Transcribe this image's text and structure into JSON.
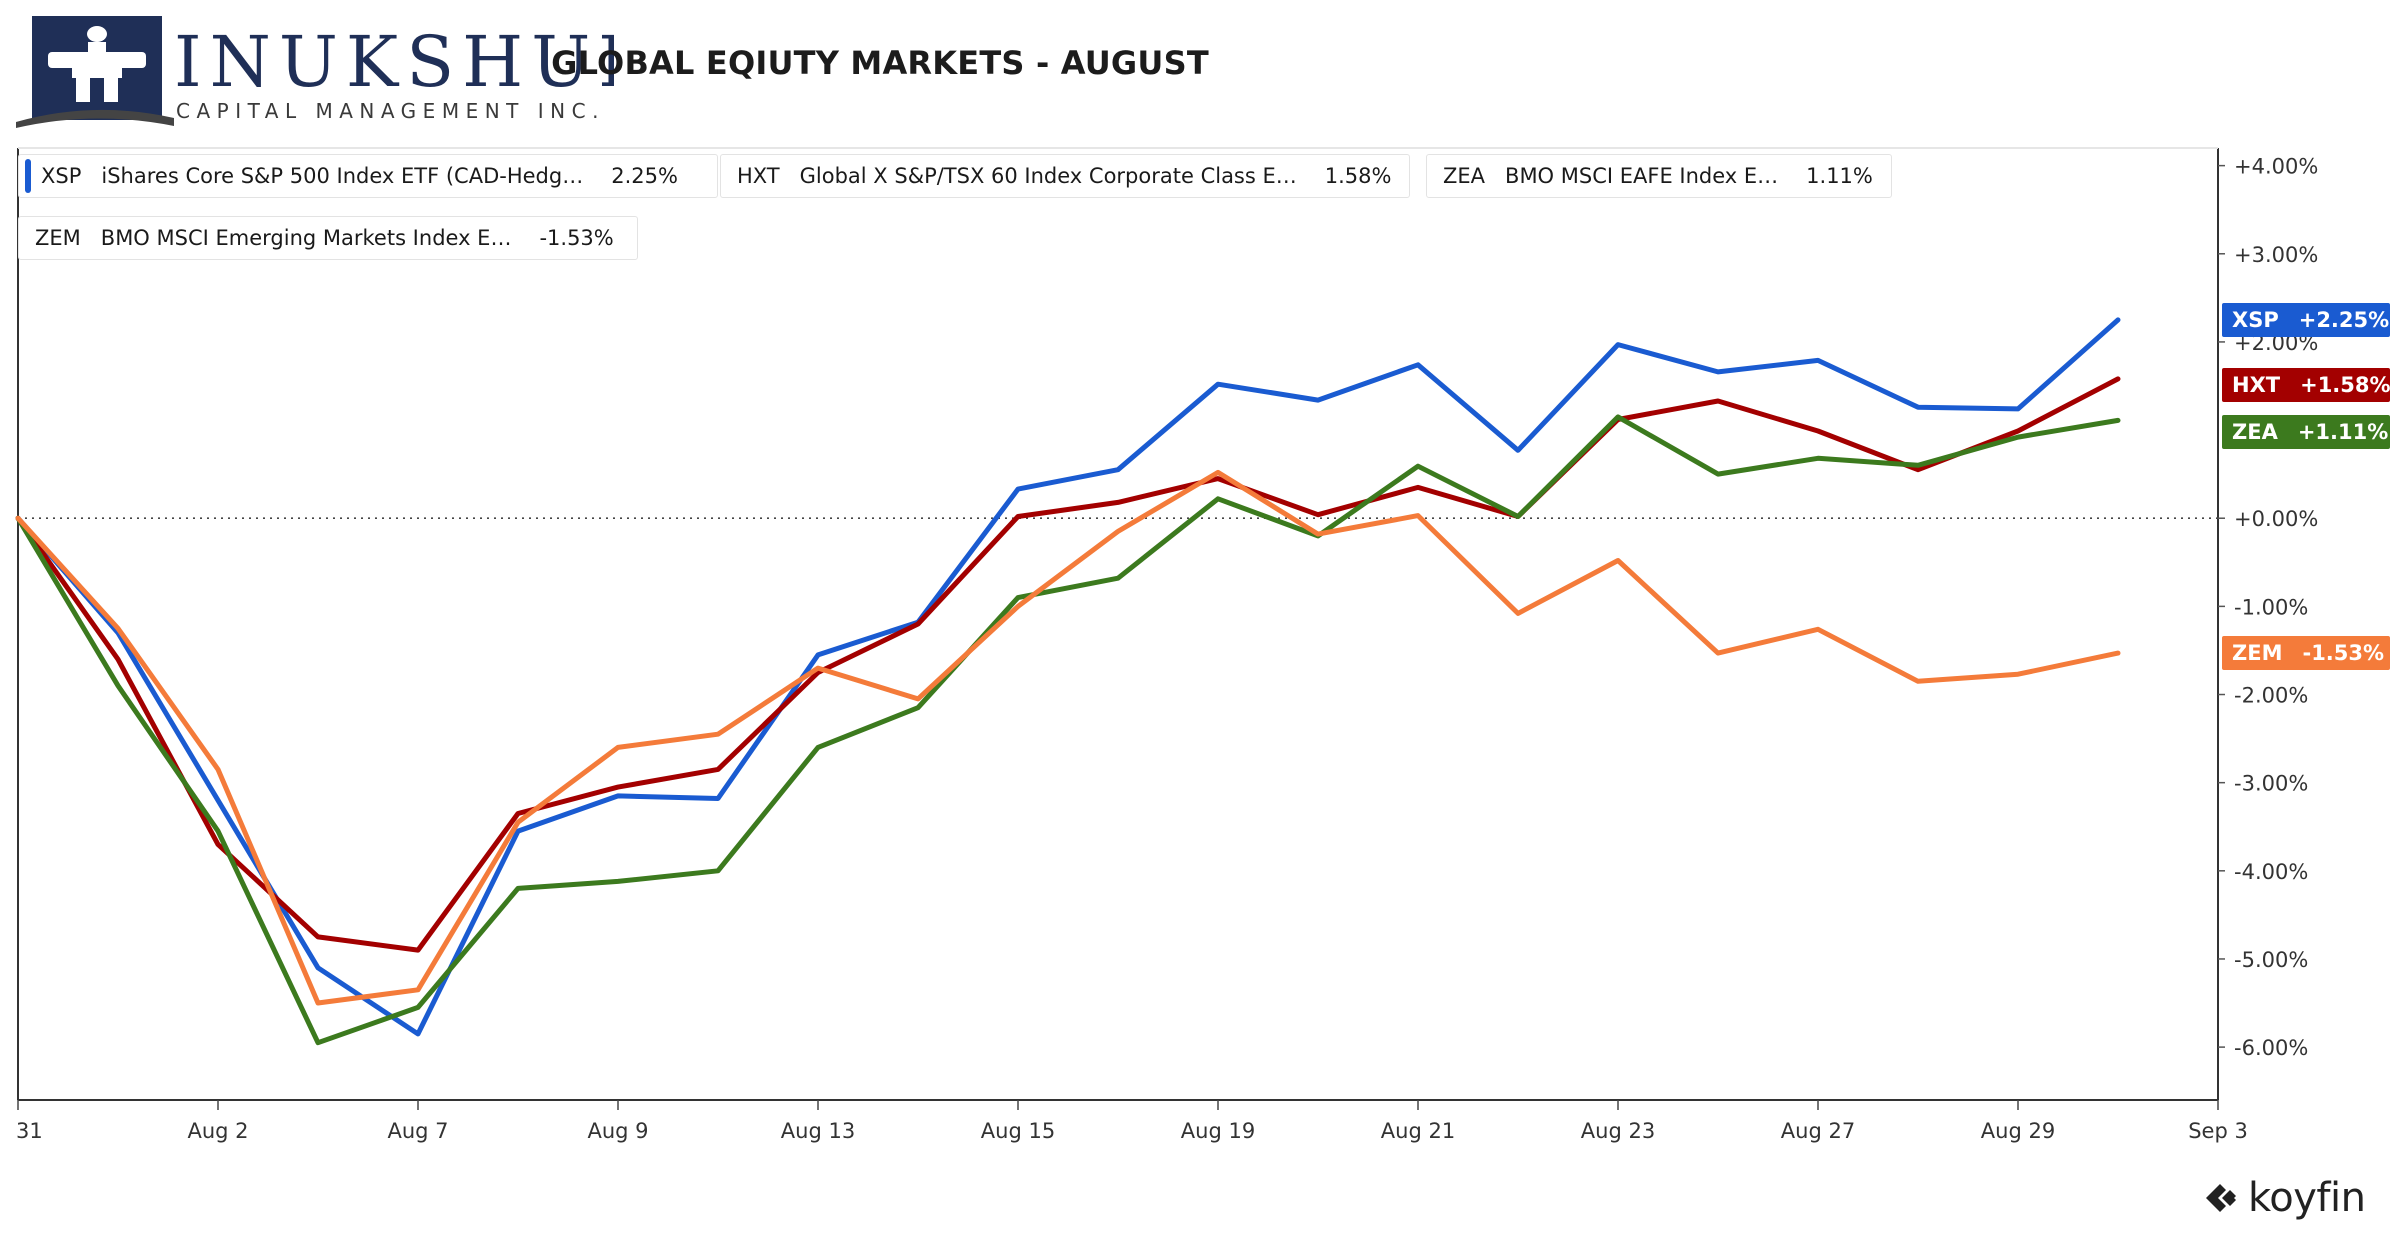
{
  "header": {
    "brand_name": "INUKSHUK",
    "brand_sub": "CAPITAL MANAGEMENT INC.",
    "title": "GLOBAL EQIUTY MARKETS - AUGUST",
    "footer_brand": "koyfin",
    "logo_icon": "inukshuk-logo-icon"
  },
  "legend": [
    {
      "ticker": "XSP",
      "name": "iShares Core S&P 500 Index ETF (CAD-Hedg…",
      "value": "2.25%",
      "color": "#1a5bd1"
    },
    {
      "ticker": "HXT",
      "name": "Global X S&P/TSX 60 Index Corporate Class E…",
      "value": "1.58%",
      "color": "#a30000"
    },
    {
      "ticker": "ZEA",
      "name": "BMO MSCI EAFE Index E…",
      "value": "1.11%",
      "color": "#3c7a1e"
    },
    {
      "ticker": "ZEM",
      "name": "BMO MSCI Emerging Markets Index E…",
      "value": "-1.53%",
      "color": "#f47b3a"
    }
  ],
  "end_labels": [
    {
      "ticker": "XSP",
      "value": "+2.25%",
      "color": "#1a5bd1"
    },
    {
      "ticker": "HXT",
      "value": "+1.58%",
      "color": "#a30000"
    },
    {
      "ticker": "ZEA",
      "value": "+1.11%",
      "color": "#3c7a1e"
    },
    {
      "ticker": "ZEM",
      "value": "-1.53%",
      "color": "#f47b3a"
    }
  ],
  "chart_data": {
    "type": "line",
    "title": "GLOBAL EQIUTY MARKETS - AUGUST",
    "xlabel": "",
    "ylabel": "",
    "x_tick_labels": [
      "31",
      "Aug 2",
      "Aug 7",
      "Aug 9",
      "Aug 13",
      "Aug 15",
      "Aug 19",
      "Aug 21",
      "Aug 23",
      "Aug 27",
      "Aug 29",
      "Sep 3"
    ],
    "x": [
      "Jul 31",
      "Aug 1",
      "Aug 2",
      "Aug 5",
      "Aug 7",
      "Aug 8",
      "Aug 9",
      "Aug 12",
      "Aug 13",
      "Aug 14",
      "Aug 15",
      "Aug 16",
      "Aug 19",
      "Aug 20",
      "Aug 21",
      "Aug 22",
      "Aug 23",
      "Aug 26",
      "Aug 27",
      "Aug 28",
      "Aug 29",
      "Aug 30"
    ],
    "y_tick_labels": [
      "+4.00%",
      "+3.00%",
      "+2.00%",
      "+0.00%",
      "-1.00%",
      "-2.00%",
      "-3.00%",
      "-4.00%",
      "-5.00%",
      "-6.00%"
    ],
    "ylim": [
      -6.6,
      4.2
    ],
    "zero_line": "dotted",
    "grid": false,
    "legend_position": "top-left",
    "series": [
      {
        "name": "XSP",
        "color": "#1a5bd1",
        "values": [
          0.0,
          -1.3,
          -3.2,
          -5.1,
          -5.85,
          -3.55,
          -3.15,
          -3.18,
          -1.55,
          -1.18,
          0.33,
          0.55,
          1.52,
          1.34,
          1.74,
          0.77,
          1.97,
          1.66,
          1.79,
          1.26,
          1.24,
          2.25
        ]
      },
      {
        "name": "HXT",
        "color": "#a30000",
        "values": [
          0.0,
          -1.6,
          -3.7,
          -4.75,
          -4.9,
          -3.35,
          -3.05,
          -2.85,
          -1.75,
          -1.2,
          0.02,
          0.18,
          0.45,
          0.04,
          0.35,
          0.02,
          1.12,
          1.33,
          0.99,
          0.55,
          0.99,
          1.58
        ]
      },
      {
        "name": "ZEA",
        "color": "#3c7a1e",
        "values": [
          0.0,
          -1.9,
          -3.55,
          -5.95,
          -5.55,
          -4.2,
          -4.12,
          -4.0,
          -2.6,
          -2.15,
          -0.9,
          -0.68,
          0.22,
          -0.2,
          0.59,
          0.02,
          1.15,
          0.5,
          0.68,
          0.6,
          0.92,
          1.11
        ]
      },
      {
        "name": "ZEM",
        "color": "#f47b3a",
        "values": [
          0.0,
          -1.25,
          -2.85,
          -5.5,
          -5.35,
          -3.45,
          -2.6,
          -2.45,
          -1.7,
          -2.05,
          -1.0,
          -0.15,
          0.52,
          -0.18,
          0.03,
          -1.08,
          -0.48,
          -1.53,
          -1.26,
          -1.85,
          -1.77,
          -1.53
        ]
      }
    ]
  }
}
